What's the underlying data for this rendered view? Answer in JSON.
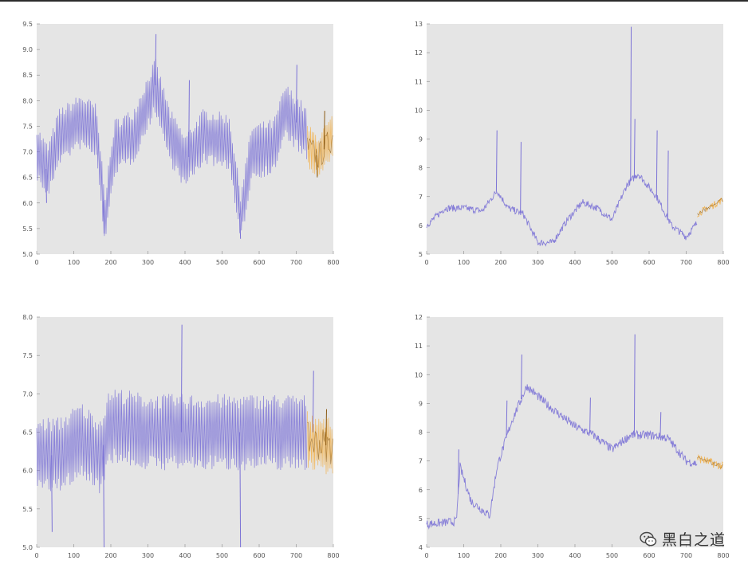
{
  "colors": {
    "plot_background": "#e5e5e5",
    "history_series": "#7b72d6",
    "forecast_series": "#f2b24f",
    "forecast_dark": "#8a5a14"
  },
  "watermark": {
    "text": "黑白之道",
    "icon": "wechat-icon"
  },
  "chart_data": [
    {
      "type": "line",
      "position": "top-left",
      "xlim": [
        0,
        800
      ],
      "ylim": [
        5.0,
        9.5
      ],
      "x_ticks": [
        "0",
        "100",
        "200",
        "300",
        "400",
        "500",
        "600",
        "700",
        "800"
      ],
      "y_ticks": [
        "5.0",
        "5.5",
        "6.0",
        "6.5",
        "7.0",
        "7.5",
        "8.0",
        "8.5",
        "9.0",
        "9.5"
      ],
      "grid": false,
      "series": [
        {
          "role": "history",
          "x_range": [
            0,
            730
          ],
          "oscillation": 0.55,
          "trend": [
            [
              0,
              7.0
            ],
            [
              30,
              6.6
            ],
            [
              60,
              7.3
            ],
            [
              120,
              7.6
            ],
            [
              160,
              7.4
            ],
            [
              185,
              5.7
            ],
            [
              210,
              7.1
            ],
            [
              260,
              7.3
            ],
            [
              320,
              8.3
            ],
            [
              360,
              7.3
            ],
            [
              400,
              6.8
            ],
            [
              450,
              7.3
            ],
            [
              520,
              7.2
            ],
            [
              550,
              5.7
            ],
            [
              580,
              7.0
            ],
            [
              640,
              7.1
            ],
            [
              670,
              7.8
            ],
            [
              710,
              7.5
            ],
            [
              730,
              7.3
            ]
          ],
          "spikes": [
            [
              25,
              6.0
            ],
            [
              180,
              5.4
            ],
            [
              320,
              9.3
            ],
            [
              410,
              8.4
            ],
            [
              548,
              5.3
            ],
            [
              700,
              8.7
            ]
          ]
        },
        {
          "role": "forecast",
          "x_range": [
            730,
            800
          ],
          "oscillation": 0.45,
          "trend": [
            [
              730,
              7.1
            ],
            [
              760,
              6.9
            ],
            [
              800,
              7.3
            ]
          ],
          "spikes": [
            [
              775,
              7.8
            ],
            [
              755,
              6.5
            ]
          ]
        }
      ]
    },
    {
      "type": "line",
      "position": "top-right",
      "xlim": [
        0,
        800
      ],
      "ylim": [
        5,
        13
      ],
      "x_ticks": [
        "0",
        "100",
        "200",
        "300",
        "400",
        "500",
        "600",
        "700",
        "800"
      ],
      "y_ticks": [
        "5",
        "6",
        "7",
        "8",
        "9",
        "10",
        "11",
        "12",
        "13"
      ],
      "grid": false,
      "series": [
        {
          "role": "history",
          "x_range": [
            0,
            730
          ],
          "oscillation": 0.12,
          "trend": [
            [
              0,
              6.0
            ],
            [
              50,
              6.6
            ],
            [
              100,
              6.6
            ],
            [
              150,
              6.5
            ],
            [
              190,
              7.2
            ],
            [
              220,
              6.6
            ],
            [
              260,
              6.4
            ],
            [
              300,
              5.4
            ],
            [
              340,
              5.4
            ],
            [
              380,
              6.2
            ],
            [
              420,
              6.8
            ],
            [
              460,
              6.6
            ],
            [
              500,
              6.2
            ],
            [
              540,
              7.4
            ],
            [
              570,
              7.8
            ],
            [
              620,
              7.0
            ],
            [
              660,
              6.0
            ],
            [
              700,
              5.6
            ],
            [
              730,
              6.1
            ]
          ],
          "spikes": [
            [
              188,
              9.3
            ],
            [
              253,
              8.9
            ],
            [
              550,
              12.9
            ],
            [
              560,
              9.7
            ],
            [
              620,
              9.3
            ],
            [
              650,
              8.6
            ]
          ]
        },
        {
          "role": "forecast",
          "x_range": [
            730,
            800
          ],
          "oscillation": 0.12,
          "trend": [
            [
              730,
              6.4
            ],
            [
              800,
              6.9
            ]
          ],
          "spikes": []
        }
      ]
    },
    {
      "type": "line",
      "position": "bottom-left",
      "xlim": [
        0,
        800
      ],
      "ylim": [
        5.0,
        8.0
      ],
      "x_ticks": [
        "0",
        "100",
        "200",
        "300",
        "400",
        "500",
        "600",
        "700",
        "800"
      ],
      "y_ticks": [
        "5.0",
        "5.5",
        "6.0",
        "6.5",
        "7.0",
        "7.5",
        "8.0"
      ],
      "grid": false,
      "series": [
        {
          "role": "history",
          "x_range": [
            0,
            730
          ],
          "oscillation": 0.5,
          "trend": [
            [
              0,
              6.2
            ],
            [
              60,
              6.2
            ],
            [
              120,
              6.4
            ],
            [
              170,
              6.2
            ],
            [
              200,
              6.6
            ],
            [
              300,
              6.5
            ],
            [
              400,
              6.5
            ],
            [
              500,
              6.5
            ],
            [
              600,
              6.5
            ],
            [
              730,
              6.5
            ]
          ],
          "spikes": [
            [
              40,
              5.2
            ],
            [
              180,
              5.0
            ],
            [
              390,
              7.9
            ],
            [
              548,
              5.0
            ],
            [
              745,
              7.3
            ]
          ]
        },
        {
          "role": "forecast",
          "x_range": [
            730,
            800
          ],
          "oscillation": 0.38,
          "trend": [
            [
              730,
              6.4
            ],
            [
              800,
              6.3
            ]
          ],
          "spikes": [
            [
              780,
              6.8
            ]
          ]
        }
      ]
    },
    {
      "type": "line",
      "position": "bottom-right",
      "xlim": [
        0,
        800
      ],
      "ylim": [
        4,
        12
      ],
      "x_ticks": [
        "0",
        "100",
        "200",
        "300",
        "400",
        "500",
        "600",
        "700",
        "800"
      ],
      "y_ticks": [
        "4",
        "5",
        "6",
        "7",
        "8",
        "9",
        "10",
        "11",
        "12"
      ],
      "grid": false,
      "series": [
        {
          "role": "history",
          "x_range": [
            0,
            730
          ],
          "oscillation": 0.15,
          "trend": [
            [
              0,
              4.8
            ],
            [
              80,
              4.9
            ],
            [
              90,
              6.8
            ],
            [
              120,
              5.6
            ],
            [
              170,
              5.1
            ],
            [
              190,
              6.8
            ],
            [
              230,
              8.4
            ],
            [
              270,
              9.6
            ],
            [
              330,
              8.9
            ],
            [
              400,
              8.2
            ],
            [
              450,
              7.9
            ],
            [
              500,
              7.4
            ],
            [
              550,
              7.9
            ],
            [
              600,
              7.9
            ],
            [
              650,
              7.8
            ],
            [
              700,
              7.0
            ],
            [
              730,
              6.9
            ]
          ],
          "spikes": [
            [
              85,
              7.4
            ],
            [
              215,
              9.1
            ],
            [
              255,
              10.7
            ],
            [
              440,
              9.2
            ],
            [
              560,
              11.4
            ],
            [
              630,
              8.7
            ]
          ]
        },
        {
          "role": "forecast",
          "x_range": [
            730,
            800
          ],
          "oscillation": 0.15,
          "trend": [
            [
              730,
              7.1
            ],
            [
              800,
              6.8
            ]
          ],
          "spikes": []
        }
      ]
    }
  ]
}
